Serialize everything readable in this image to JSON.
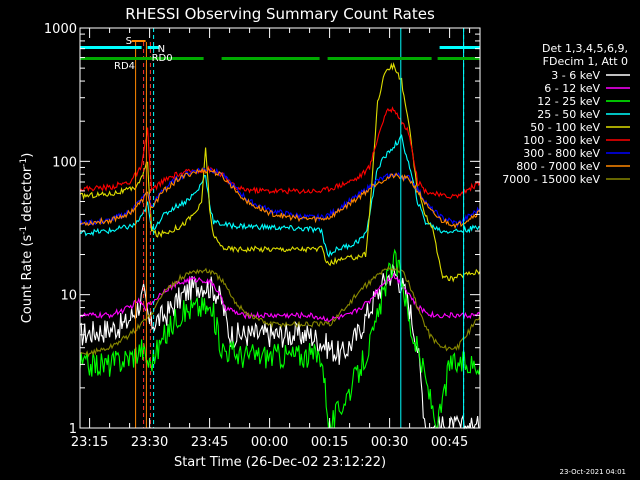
{
  "chart_data": {
    "type": "line",
    "title": "RHESSI Observing Summary Count Rates",
    "xlabel": "Start Time (26-Dec-02 23:12:22)",
    "ylabel_main": "Count Rate (s",
    "ylabel_sup1": "-1",
    "ylabel_mid": " detector",
    "ylabel_sup2": "-1",
    "ylabel_end": ")",
    "yscale": "log",
    "ylim": [
      1,
      1000
    ],
    "xlim_minutes": [
      -2.4,
      97.6
    ],
    "y_ticks": [
      {
        "value": 1,
        "label": "1"
      },
      {
        "value": 10,
        "label": "10"
      },
      {
        "value": 100,
        "label": "100"
      },
      {
        "value": 1000,
        "label": "1000"
      }
    ],
    "x_ticks": [
      {
        "minute": 0,
        "label": "23:15"
      },
      {
        "minute": 15,
        "label": "23:30"
      },
      {
        "minute": 30,
        "label": "23:45"
      },
      {
        "minute": 45,
        "label": "00:00"
      },
      {
        "minute": 60,
        "label": "00:15"
      },
      {
        "minute": 75,
        "label": "00:30"
      },
      {
        "minute": 90,
        "label": "00:45"
      }
    ],
    "legend_header": [
      "Det 1,3,4,5,6,9,",
      "FDecim 1, Att 0"
    ],
    "legend_position": "right",
    "series": [
      {
        "name": "3 - 6 keV",
        "color": "#ffffff",
        "points": [
          [
            -2.4,
            5
          ],
          [
            5,
            5.5
          ],
          [
            9,
            6
          ],
          [
            12,
            8
          ],
          [
            13.5,
            10
          ],
          [
            15,
            6
          ],
          [
            19,
            7
          ],
          [
            22,
            9
          ],
          [
            25,
            11
          ],
          [
            28,
            12
          ],
          [
            31,
            11
          ],
          [
            33,
            9
          ],
          [
            35,
            5
          ],
          [
            40,
            5
          ],
          [
            45,
            5
          ],
          [
            50,
            5
          ],
          [
            55,
            5
          ],
          [
            60,
            4
          ],
          [
            63,
            3.5
          ],
          [
            67,
            5
          ],
          [
            71,
            9
          ],
          [
            74,
            13
          ],
          [
            76,
            15
          ],
          [
            78,
            12
          ],
          [
            80,
            8
          ],
          [
            82,
            4
          ],
          [
            84,
            1
          ],
          [
            97.6,
            1
          ]
        ]
      },
      {
        "name": "6 - 12 keV",
        "color": "#ff00ff",
        "points": [
          [
            -2.4,
            7
          ],
          [
            5,
            7
          ],
          [
            10,
            8
          ],
          [
            12,
            9
          ],
          [
            14,
            8
          ],
          [
            16,
            9
          ],
          [
            19,
            11
          ],
          [
            22,
            12
          ],
          [
            25,
            13
          ],
          [
            28,
            13
          ],
          [
            31,
            12
          ],
          [
            34,
            8
          ],
          [
            38,
            7
          ],
          [
            42,
            7
          ],
          [
            46,
            7
          ],
          [
            50,
            7
          ],
          [
            55,
            7
          ],
          [
            60,
            6.5
          ],
          [
            65,
            7
          ],
          [
            70,
            9
          ],
          [
            73,
            12
          ],
          [
            76,
            14
          ],
          [
            78,
            12
          ],
          [
            80,
            10
          ],
          [
            82,
            8
          ],
          [
            86,
            7
          ],
          [
            90,
            7
          ],
          [
            97.6,
            7
          ]
        ]
      },
      {
        "name": "12 - 25 keV",
        "color": "#00ff00",
        "points": [
          [
            -2.4,
            3
          ],
          [
            5,
            3
          ],
          [
            11,
            3.5
          ],
          [
            13,
            4
          ],
          [
            15,
            3
          ],
          [
            19,
            5
          ],
          [
            22,
            7
          ],
          [
            26,
            8
          ],
          [
            29,
            8
          ],
          [
            31,
            7
          ],
          [
            33,
            4
          ],
          [
            38,
            3.5
          ],
          [
            45,
            3.5
          ],
          [
            52,
            3.5
          ],
          [
            58,
            3.5
          ],
          [
            60,
            1
          ],
          [
            63,
            1.5
          ],
          [
            67,
            2.5
          ],
          [
            71,
            5
          ],
          [
            74,
            12
          ],
          [
            76,
            18
          ],
          [
            78,
            14
          ],
          [
            80,
            6
          ],
          [
            83,
            3
          ],
          [
            87,
            1
          ],
          [
            90,
            3
          ],
          [
            97.6,
            3
          ]
        ]
      },
      {
        "name": "25 - 50 keV",
        "color": "#00ffff",
        "points": [
          [
            -2.4,
            29
          ],
          [
            5,
            30
          ],
          [
            11,
            33
          ],
          [
            13,
            38
          ],
          [
            14.5,
            48
          ],
          [
            15.5,
            30
          ],
          [
            18,
            38
          ],
          [
            21,
            45
          ],
          [
            24,
            50
          ],
          [
            27,
            60
          ],
          [
            29,
            80
          ],
          [
            30,
            48
          ],
          [
            31,
            35
          ],
          [
            35,
            33
          ],
          [
            45,
            32
          ],
          [
            55,
            31
          ],
          [
            58,
            30
          ],
          [
            59.5,
            20
          ],
          [
            62,
            22
          ],
          [
            66,
            24
          ],
          [
            69,
            28
          ],
          [
            70,
            40
          ],
          [
            72,
            90
          ],
          [
            75,
            120
          ],
          [
            78,
            150
          ],
          [
            80,
            90
          ],
          [
            82,
            50
          ],
          [
            84,
            35
          ],
          [
            88,
            30
          ],
          [
            92,
            30
          ],
          [
            97.6,
            32
          ]
        ]
      },
      {
        "name": "50 - 100 keV",
        "color": "#dddd00",
        "points": [
          [
            -2.4,
            55
          ],
          [
            5,
            57
          ],
          [
            11,
            62
          ],
          [
            13,
            75
          ],
          [
            14.5,
            100
          ],
          [
            15.5,
            30
          ],
          [
            17,
            28
          ],
          [
            20,
            30
          ],
          [
            23,
            33
          ],
          [
            26,
            40
          ],
          [
            28,
            48
          ],
          [
            29,
            130
          ],
          [
            30,
            45
          ],
          [
            31,
            27
          ],
          [
            33,
            23
          ],
          [
            35,
            22
          ],
          [
            45,
            22
          ],
          [
            55,
            22
          ],
          [
            58,
            22
          ],
          [
            59.5,
            17
          ],
          [
            62,
            18
          ],
          [
            66,
            19
          ],
          [
            69,
            20
          ],
          [
            70,
            40
          ],
          [
            72,
            280
          ],
          [
            74,
            480
          ],
          [
            76,
            520
          ],
          [
            78,
            400
          ],
          [
            80,
            170
          ],
          [
            82,
            60
          ],
          [
            84,
            40
          ],
          [
            86,
            30
          ],
          [
            88,
            14
          ],
          [
            90,
            13
          ],
          [
            93,
            14
          ],
          [
            97.6,
            15
          ]
        ]
      },
      {
        "name": "100 - 300 keV",
        "color": "#ff0000",
        "points": [
          [
            -2.4,
            62
          ],
          [
            5,
            64
          ],
          [
            10,
            70
          ],
          [
            13,
            90
          ],
          [
            14.5,
            175
          ],
          [
            15.5,
            60
          ],
          [
            18,
            70
          ],
          [
            22,
            80
          ],
          [
            26,
            85
          ],
          [
            30,
            87
          ],
          [
            33,
            80
          ],
          [
            35,
            70
          ],
          [
            37,
            62
          ],
          [
            45,
            60
          ],
          [
            55,
            60
          ],
          [
            58,
            60
          ],
          [
            59.5,
            62
          ],
          [
            63,
            67
          ],
          [
            67,
            75
          ],
          [
            70,
            90
          ],
          [
            72,
            150
          ],
          [
            74,
            230
          ],
          [
            76,
            250
          ],
          [
            78,
            200
          ],
          [
            80,
            160
          ],
          [
            82,
            70
          ],
          [
            84,
            60
          ],
          [
            88,
            55
          ],
          [
            92,
            55
          ],
          [
            97.6,
            70
          ]
        ]
      },
      {
        "name": "300 - 800 keV",
        "color": "#0000ff",
        "points": [
          [
            -2.4,
            34
          ],
          [
            5,
            36
          ],
          [
            10,
            42
          ],
          [
            13,
            52
          ],
          [
            14.5,
            60
          ],
          [
            15.5,
            45
          ],
          [
            18,
            60
          ],
          [
            22,
            75
          ],
          [
            26,
            85
          ],
          [
            30,
            88
          ],
          [
            33,
            80
          ],
          [
            36,
            65
          ],
          [
            40,
            50
          ],
          [
            45,
            43
          ],
          [
            50,
            40
          ],
          [
            55,
            38
          ],
          [
            58,
            38
          ],
          [
            60,
            40
          ],
          [
            64,
            48
          ],
          [
            68,
            58
          ],
          [
            72,
            72
          ],
          [
            76,
            80
          ],
          [
            80,
            75
          ],
          [
            82,
            62
          ],
          [
            85,
            45
          ],
          [
            88,
            38
          ],
          [
            92,
            34
          ],
          [
            97.6,
            44
          ]
        ]
      },
      {
        "name": "800 - 7000 keV",
        "color": "#ff8800",
        "points": [
          [
            -2.4,
            34
          ],
          [
            5,
            36
          ],
          [
            10,
            41
          ],
          [
            13,
            50
          ],
          [
            14.5,
            58
          ],
          [
            15.5,
            44
          ],
          [
            18,
            58
          ],
          [
            22,
            73
          ],
          [
            26,
            83
          ],
          [
            30,
            86
          ],
          [
            33,
            78
          ],
          [
            36,
            63
          ],
          [
            40,
            48
          ],
          [
            45,
            41
          ],
          [
            50,
            38
          ],
          [
            55,
            37
          ],
          [
            58,
            37
          ],
          [
            60,
            38
          ],
          [
            64,
            46
          ],
          [
            68,
            56
          ],
          [
            72,
            70
          ],
          [
            76,
            78
          ],
          [
            80,
            73
          ],
          [
            82,
            60
          ],
          [
            85,
            43
          ],
          [
            88,
            36
          ],
          [
            92,
            33
          ],
          [
            97.6,
            42
          ]
        ]
      },
      {
        "name": "7000 - 15000 keV",
        "color": "#888800",
        "points": [
          [
            -2.4,
            3.5
          ],
          [
            5,
            4
          ],
          [
            10,
            5
          ],
          [
            13,
            6
          ],
          [
            14.5,
            7
          ],
          [
            15.5,
            7
          ],
          [
            18,
            10
          ],
          [
            22,
            13
          ],
          [
            26,
            15
          ],
          [
            30,
            15
          ],
          [
            33,
            13
          ],
          [
            36,
            9
          ],
          [
            40,
            7
          ],
          [
            45,
            6
          ],
          [
            50,
            6
          ],
          [
            55,
            6
          ],
          [
            58,
            6
          ],
          [
            60,
            6
          ],
          [
            64,
            8
          ],
          [
            68,
            11
          ],
          [
            72,
            14
          ],
          [
            75,
            16
          ],
          [
            78,
            15
          ],
          [
            80,
            12
          ],
          [
            82,
            8
          ],
          [
            85,
            5
          ],
          [
            88,
            4
          ],
          [
            92,
            4
          ],
          [
            97.6,
            7
          ]
        ]
      }
    ],
    "annotations": {
      "S_label": "S",
      "N_label": "N",
      "RD0_label": "RD0",
      "RD4_label": "RD4",
      "orange_bar": [
        [
          10.5,
          14.0
        ]
      ],
      "cyan_bars": [
        [
          -2.4,
          13.0
        ],
        [
          14.5,
          17.5
        ],
        [
          87.5,
          97.6
        ]
      ],
      "green_bars": [
        [
          -2.4,
          28.5
        ],
        [
          33.0,
          57.5
        ],
        [
          59.5,
          85.5
        ],
        [
          87.0,
          97.6
        ]
      ],
      "orange_vlines": [
        11.5,
        14.2
      ],
      "red_vlines": [
        13.5,
        15.2
      ],
      "cyan_vlines": [
        77.8,
        93.5
      ],
      "cyan_vlines_dashed": [
        16.0,
        93.5
      ]
    }
  },
  "footer_date": "23-Oct-2021 04:01"
}
